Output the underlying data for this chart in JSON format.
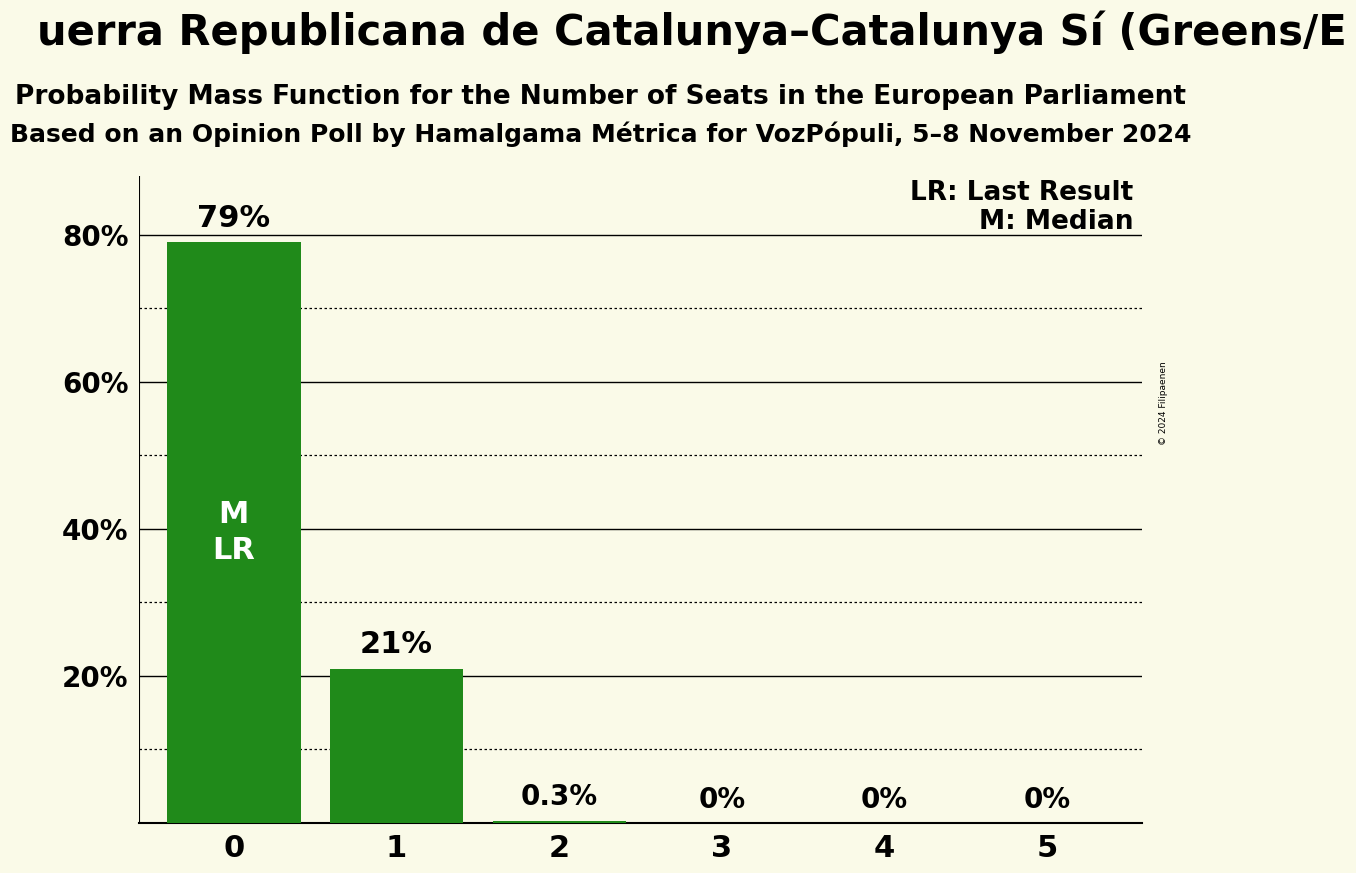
{
  "title_main": "uerra Republicana de Catalunya–Catalunya Sí (Greens/E",
  "subtitle1": "Probability Mass Function for the Number of Seats in the European Parliament",
  "subtitle2": "Based on an Opinion Poll by Hamalgama Métrica for VozPópuli, 5–8 November 2024",
  "seats": [
    0,
    1,
    2,
    3,
    4,
    5
  ],
  "probabilities": [
    0.79,
    0.21,
    0.003,
    0.0,
    0.0,
    0.0
  ],
  "bar_labels": [
    "79%",
    "21%",
    "0.3%",
    "0%",
    "0%",
    "0%"
  ],
  "bar_color": "#208A1A",
  "background_color": "#FAFAE8",
  "legend_lr": "LR: Last Result",
  "legend_m": "M: Median",
  "copyright": "© 2024 Filipaenen",
  "title_fontsize": 30,
  "subtitle1_fontsize": 19,
  "subtitle2_fontsize": 18,
  "label_fontsize": 20,
  "tick_fontsize": 20,
  "mlr_fontsize": 22
}
